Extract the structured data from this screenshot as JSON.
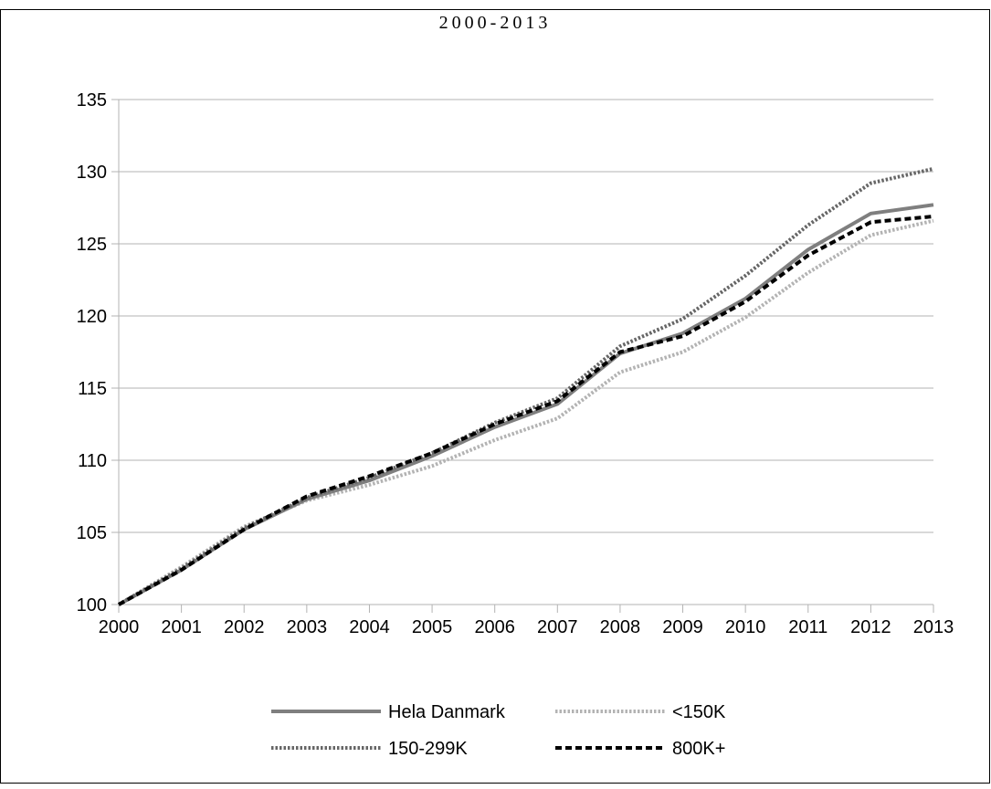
{
  "chart_data": {
    "type": "line",
    "title": "2000-2013",
    "xlabel": "",
    "ylabel": "",
    "ylim": [
      100,
      135
    ],
    "yticks": [
      100,
      105,
      110,
      115,
      120,
      125,
      130,
      135
    ],
    "x": [
      2000,
      2001,
      2002,
      2003,
      2004,
      2005,
      2006,
      2007,
      2008,
      2009,
      2010,
      2011,
      2012,
      2013
    ],
    "grid": "horizontal",
    "legend_position": "bottom",
    "series": [
      {
        "name": "Hela Danmark",
        "color": "#7f7f7f",
        "style": "solid",
        "values": [
          100,
          102.4,
          105.2,
          107.3,
          108.6,
          110.3,
          112.3,
          113.9,
          117.4,
          118.8,
          121.2,
          124.6,
          127.1,
          127.7
        ]
      },
      {
        "name": "<150K",
        "color": "#b3b3b3",
        "style": "dotted",
        "values": [
          100,
          102.6,
          105.4,
          107.2,
          108.3,
          109.6,
          111.4,
          112.9,
          116.1,
          117.5,
          119.9,
          123.0,
          125.6,
          126.6
        ]
      },
      {
        "name": "150-299K",
        "color": "#666666",
        "style": "dotted",
        "values": [
          100,
          102.5,
          105.3,
          107.4,
          108.8,
          110.5,
          112.6,
          114.3,
          117.9,
          119.8,
          122.8,
          126.3,
          129.2,
          130.2
        ]
      },
      {
        "name": "800K+",
        "color": "#000000",
        "style": "dashed",
        "values": [
          100,
          102.4,
          105.2,
          107.5,
          108.9,
          110.5,
          112.5,
          114.1,
          117.5,
          118.6,
          121.0,
          124.2,
          126.5,
          126.9
        ]
      }
    ]
  }
}
